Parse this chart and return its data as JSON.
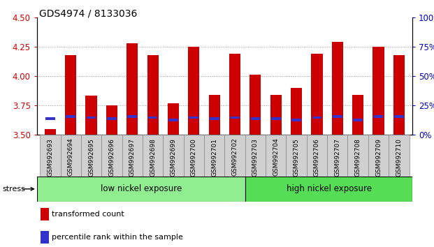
{
  "title": "GDS4974 / 8133036",
  "categories": [
    "GSM992693",
    "GSM992694",
    "GSM992695",
    "GSM992696",
    "GSM992697",
    "GSM992698",
    "GSM992699",
    "GSM992700",
    "GSM992701",
    "GSM992702",
    "GSM992703",
    "GSM992704",
    "GSM992705",
    "GSM992706",
    "GSM992707",
    "GSM992708",
    "GSM992709",
    "GSM992710"
  ],
  "red_values": [
    3.55,
    4.18,
    3.83,
    3.75,
    4.28,
    4.18,
    3.77,
    4.25,
    3.84,
    4.19,
    4.01,
    3.84,
    3.9,
    4.19,
    4.29,
    3.84,
    4.25,
    4.18
  ],
  "blue_values": [
    3.635,
    3.655,
    3.645,
    3.635,
    3.655,
    3.645,
    3.625,
    3.645,
    3.635,
    3.645,
    3.635,
    3.635,
    3.625,
    3.645,
    3.655,
    3.625,
    3.655,
    3.655
  ],
  "red_color": "#cc0000",
  "blue_color": "#3333cc",
  "bar_bottom": 3.5,
  "ylim_left": [
    3.5,
    4.5
  ],
  "ylim_right": [
    0,
    100
  ],
  "yticks_left": [
    3.5,
    3.75,
    4.0,
    4.25,
    4.5
  ],
  "yticks_right": [
    0,
    25,
    50,
    75,
    100
  ],
  "ytick_labels_right": [
    "0%",
    "25%",
    "50%",
    "75%",
    "100%"
  ],
  "grid_ticks": [
    3.75,
    4.0,
    4.25
  ],
  "group1_label": "low nickel exposure",
  "group2_label": "high nickel exposure",
  "group1_count": 10,
  "group2_count": 8,
  "group1_color": "#90ee90",
  "group2_color": "#55dd55",
  "stress_label": "stress",
  "legend_red": "transformed count",
  "legend_blue": "percentile rank within the sample",
  "bar_width": 0.55,
  "xlabel_color": "#cc0000",
  "right_axis_color": "#0000cc",
  "tick_label_bg": "#d0d0d0",
  "fig_bg": "#f0f0f0"
}
